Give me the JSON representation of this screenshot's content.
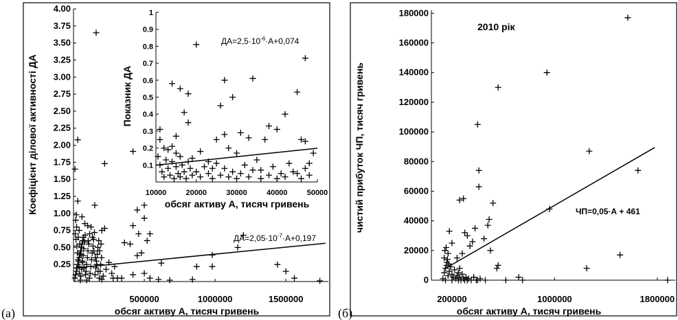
{
  "figure": {
    "panel_a_letter": "(a)",
    "panel_b_letter": "(б)"
  },
  "chart_data": [
    {
      "type": "scatter",
      "id": "panel-a-main",
      "xlabel": "обсяг активу А, тисяч гривень",
      "ylabel": "Коефіцієнт ділової активності ДА",
      "xlim": [
        0,
        1800000
      ],
      "ylim": [
        0,
        4.0
      ],
      "x_ticks": [
        500000,
        1000000,
        1500000
      ],
      "x_tick_labels": [
        "500000",
        "1000000",
        "1500000"
      ],
      "y_ticks": [
        0.25,
        0.5,
        0.75,
        1.0,
        1.25,
        1.5,
        1.75,
        2.0,
        2.25,
        2.5,
        2.75,
        3.0,
        3.25,
        3.5,
        3.75,
        4.0
      ],
      "y_tick_labels": [
        "0.25",
        "0.50",
        "0.75",
        "1.00",
        "1.25",
        "1.50",
        "1.75",
        "2.00",
        "2.25",
        "2.50",
        "2.75",
        "3.00",
        "3.25",
        "3.50",
        "3.75",
        "4.00"
      ],
      "marker": "+",
      "equation": "ДА=2,05·10-7·А+0,197",
      "equation_parts": [
        "ДА=2,05·10",
        "-7",
        "·А+0,197"
      ],
      "trendline": {
        "slope": 2.05e-07,
        "intercept": 0.197,
        "x_from": 0,
        "x_to": 1780000
      },
      "points": [
        [
          160000,
          3.65
        ],
        [
          30000,
          2.08
        ],
        [
          10000,
          1.65
        ],
        [
          220000,
          1.73
        ],
        [
          420000,
          1.91
        ],
        [
          30000,
          1.18
        ],
        [
          150000,
          1.12
        ],
        [
          500000,
          1.12
        ],
        [
          450000,
          1.05
        ],
        [
          20000,
          0.98
        ],
        [
          60000,
          0.95
        ],
        [
          500000,
          0.93
        ],
        [
          80000,
          0.85
        ],
        [
          100000,
          0.82
        ],
        [
          40000,
          0.75
        ],
        [
          200000,
          0.75
        ],
        [
          220000,
          0.78
        ],
        [
          420000,
          0.82
        ],
        [
          460000,
          0.7
        ],
        [
          540000,
          0.7
        ],
        [
          360000,
          0.57
        ],
        [
          400000,
          0.55
        ],
        [
          520000,
          0.6
        ],
        [
          480000,
          0.42
        ],
        [
          450000,
          0.38
        ],
        [
          1200000,
          0.68
        ],
        [
          1160000,
          0.5
        ],
        [
          980000,
          0.39
        ],
        [
          620000,
          0.27
        ],
        [
          870000,
          0.22
        ],
        [
          980000,
          0.22
        ],
        [
          1440000,
          0.25
        ],
        [
          1500000,
          0.15
        ],
        [
          1560000,
          0.05
        ],
        [
          1740000,
          0.01
        ],
        [
          420000,
          0.1
        ],
        [
          500000,
          0.12
        ],
        [
          540000,
          0.05
        ],
        [
          600000,
          0.03
        ],
        [
          680000,
          0.02
        ],
        [
          840000,
          0.03
        ],
        [
          340000,
          0.05
        ],
        [
          280000,
          0.05
        ],
        [
          200000,
          0.03
        ],
        [
          10000,
          0.05
        ],
        [
          15000,
          0.1
        ],
        [
          20000,
          0.15
        ],
        [
          25000,
          0.2
        ],
        [
          30000,
          0.25
        ],
        [
          35000,
          0.3
        ],
        [
          40000,
          0.35
        ],
        [
          45000,
          0.4
        ],
        [
          50000,
          0.45
        ],
        [
          55000,
          0.5
        ],
        [
          60000,
          0.55
        ],
        [
          65000,
          0.6
        ],
        [
          70000,
          0.65
        ],
        [
          12000,
          0.7
        ],
        [
          18000,
          0.62
        ],
        [
          24000,
          0.52
        ],
        [
          28000,
          0.42
        ],
        [
          32000,
          0.32
        ],
        [
          38000,
          0.22
        ],
        [
          42000,
          0.12
        ],
        [
          48000,
          0.02
        ],
        [
          52000,
          0.08
        ],
        [
          58000,
          0.18
        ],
        [
          62000,
          0.28
        ],
        [
          68000,
          0.38
        ],
        [
          72000,
          0.48
        ],
        [
          78000,
          0.58
        ],
        [
          82000,
          0.68
        ],
        [
          88000,
          0.15
        ],
        [
          92000,
          0.25
        ],
        [
          98000,
          0.35
        ],
        [
          102000,
          0.45
        ],
        [
          108000,
          0.55
        ],
        [
          112000,
          0.05
        ],
        [
          118000,
          0.12
        ],
        [
          122000,
          0.22
        ],
        [
          128000,
          0.32
        ],
        [
          132000,
          0.42
        ],
        [
          138000,
          0.52
        ],
        [
          142000,
          0.62
        ],
        [
          148000,
          0.72
        ],
        [
          152000,
          0.1
        ],
        [
          158000,
          0.2
        ],
        [
          162000,
          0.3
        ],
        [
          168000,
          0.4
        ],
        [
          172000,
          0.5
        ],
        [
          178000,
          0.6
        ],
        [
          182000,
          0.05
        ],
        [
          188000,
          0.15
        ],
        [
          192000,
          0.25
        ],
        [
          198000,
          0.35
        ],
        [
          210000,
          0.08
        ],
        [
          230000,
          0.18
        ],
        [
          250000,
          0.28
        ],
        [
          270000,
          0.12
        ],
        [
          290000,
          0.22
        ],
        [
          310000,
          0.05
        ],
        [
          16000,
          0.9
        ],
        [
          22000,
          0.8
        ],
        [
          34000,
          0.65
        ],
        [
          44000,
          0.55
        ],
        [
          54000,
          0.4
        ],
        [
          64000,
          0.3
        ],
        [
          74000,
          0.2
        ],
        [
          84000,
          0.1
        ],
        [
          94000,
          0.02
        ],
        [
          104000,
          0.6
        ],
        [
          114000,
          0.7
        ],
        [
          124000,
          0.8
        ],
        [
          134000,
          0.65
        ],
        [
          144000,
          0.45
        ],
        [
          154000,
          0.35
        ],
        [
          164000,
          0.25
        ],
        [
          174000,
          0.15
        ],
        [
          184000,
          0.45
        ],
        [
          194000,
          0.55
        ]
      ]
    },
    {
      "type": "scatter",
      "id": "panel-a-inset",
      "xlabel": "обсяг активу А, тисяч гривень",
      "ylabel": "Показник ДА",
      "xlim": [
        10000,
        50000
      ],
      "ylim": [
        0,
        1.0
      ],
      "x_ticks": [
        10000,
        20000,
        30000,
        40000,
        50000
      ],
      "x_tick_labels": [
        "10000",
        "20000",
        "30000",
        "40000",
        "50000"
      ],
      "y_ticks": [
        0.1,
        0.2,
        0.3,
        0.4,
        0.5,
        0.6,
        0.7,
        0.8,
        0.9,
        1.0
      ],
      "y_tick_labels": [
        "0.1",
        "0.2",
        "0.3",
        "0.4",
        "0.5",
        "0.6",
        "0.7",
        "0.8",
        "0.9",
        "1"
      ],
      "marker": "+",
      "equation": "ДА=2,5·10-6·А+0,074",
      "equation_parts": [
        "ДА=2,5·10",
        "-6",
        "·А+0,074"
      ],
      "trendline": {
        "slope": 2.5e-06,
        "intercept": 0.074,
        "x_from": 10000,
        "x_to": 50000
      },
      "points": [
        [
          20000,
          0.81
        ],
        [
          47000,
          0.73
        ],
        [
          14000,
          0.58
        ],
        [
          16000,
          0.55
        ],
        [
          18000,
          0.52
        ],
        [
          27000,
          0.6
        ],
        [
          26000,
          0.45
        ],
        [
          29000,
          0.5
        ],
        [
          34000,
          0.61
        ],
        [
          45000,
          0.53
        ],
        [
          17000,
          0.41
        ],
        [
          18000,
          0.35
        ],
        [
          11000,
          0.31
        ],
        [
          11000,
          0.25
        ],
        [
          12000,
          0.2
        ],
        [
          15000,
          0.27
        ],
        [
          25000,
          0.25
        ],
        [
          27000,
          0.28
        ],
        [
          31000,
          0.29
        ],
        [
          33000,
          0.26
        ],
        [
          38000,
          0.33
        ],
        [
          40000,
          0.31
        ],
        [
          37000,
          0.25
        ],
        [
          42000,
          0.4
        ],
        [
          46000,
          0.25
        ],
        [
          47000,
          0.24
        ],
        [
          13000,
          0.19
        ],
        [
          14000,
          0.21
        ],
        [
          15000,
          0.17
        ],
        [
          16000,
          0.15
        ],
        [
          19000,
          0.14
        ],
        [
          21000,
          0.18
        ],
        [
          23000,
          0.12
        ],
        [
          24000,
          0.08
        ],
        [
          28000,
          0.2
        ],
        [
          30000,
          0.17
        ],
        [
          32000,
          0.1
        ],
        [
          35000,
          0.13
        ],
        [
          36000,
          0.07
        ],
        [
          39000,
          0.09
        ],
        [
          41000,
          0.05
        ],
        [
          43000,
          0.11
        ],
        [
          44000,
          0.06
        ],
        [
          48000,
          0.04
        ],
        [
          49000,
          0.17
        ],
        [
          48000,
          0.11
        ],
        [
          10500,
          0.15
        ],
        [
          11000,
          0.1
        ],
        [
          11500,
          0.06
        ],
        [
          12000,
          0.03
        ],
        [
          12500,
          0.13
        ],
        [
          13000,
          0.08
        ],
        [
          13500,
          0.04
        ],
        [
          14000,
          0.12
        ],
        [
          14500,
          0.02
        ],
        [
          15000,
          0.09
        ],
        [
          15500,
          0.05
        ],
        [
          16000,
          0.03
        ],
        [
          16500,
          0.1
        ],
        [
          17000,
          0.06
        ],
        [
          17500,
          0.02
        ],
        [
          18000,
          0.12
        ],
        [
          18500,
          0.08
        ],
        [
          19000,
          0.04
        ],
        [
          20000,
          0.06
        ],
        [
          21000,
          0.03
        ],
        [
          22000,
          0.09
        ],
        [
          23000,
          0.05
        ],
        [
          24000,
          0.02
        ],
        [
          25000,
          0.11
        ],
        [
          26000,
          0.04
        ],
        [
          27000,
          0.08
        ],
        [
          28000,
          0.03
        ],
        [
          29000,
          0.06
        ],
        [
          30000,
          0.02
        ],
        [
          31000,
          0.05
        ],
        [
          33000,
          0.03
        ],
        [
          34000,
          0.07
        ],
        [
          36000,
          0.02
        ],
        [
          38000,
          0.04
        ],
        [
          40000,
          0.02
        ],
        [
          42000,
          0.03
        ],
        [
          45000,
          0.05
        ],
        [
          46000,
          0.02
        ],
        [
          47000,
          0.08
        ]
      ]
    },
    {
      "type": "scatter",
      "id": "panel-b",
      "title": "2010 рік",
      "xlabel": "обсяг активу А, тисяч гривень",
      "ylabel": "чистий прибуток ЧП, тисяч гривень",
      "xlim": [
        40000,
        1940000
      ],
      "ylim": [
        0,
        182000
      ],
      "x_ticks": [
        200000,
        1000000,
        1800000
      ],
      "x_tick_labels": [
        "200000",
        "1000000",
        "1800000"
      ],
      "y_ticks": [
        0,
        20000,
        40000,
        60000,
        80000,
        100000,
        120000,
        140000,
        160000,
        180000
      ],
      "y_tick_labels": [
        "0",
        "20000",
        "40000",
        "60000",
        "80000",
        "100000",
        "120000",
        "140000",
        "160000",
        "180000"
      ],
      "marker": "+",
      "equation": "ЧП=0,05·А + 461",
      "trendline": {
        "slope": 0.05,
        "intercept": 461,
        "x_from": 140000,
        "x_to": 1780000
      },
      "points": [
        [
          1570000,
          177000
        ],
        [
          940000,
          140000
        ],
        [
          560000,
          130000
        ],
        [
          400000,
          105000
        ],
        [
          410000,
          74000
        ],
        [
          410000,
          63000
        ],
        [
          1270000,
          87000
        ],
        [
          1650000,
          74000
        ],
        [
          260000,
          54000
        ],
        [
          290000,
          55000
        ],
        [
          520000,
          52000
        ],
        [
          960000,
          48000
        ],
        [
          490000,
          41000
        ],
        [
          480000,
          37000
        ],
        [
          380000,
          35000
        ],
        [
          450000,
          28000
        ],
        [
          360000,
          26000
        ],
        [
          340000,
          23000
        ],
        [
          320000,
          30000
        ],
        [
          300000,
          32000
        ],
        [
          280000,
          18000
        ],
        [
          240000,
          15000
        ],
        [
          200000,
          25000
        ],
        [
          180000,
          33000
        ],
        [
          170000,
          18000
        ],
        [
          160000,
          10000
        ],
        [
          260000,
          8000
        ],
        [
          560000,
          10000
        ],
        [
          550000,
          8000
        ],
        [
          500000,
          20000
        ],
        [
          1250000,
          8000
        ],
        [
          1510000,
          17000
        ],
        [
          1880000,
          0
        ],
        [
          720000,
          2000
        ],
        [
          750000,
          0
        ],
        [
          620000,
          0
        ],
        [
          400000,
          0
        ],
        [
          300000,
          0
        ],
        [
          250000,
          0
        ],
        [
          200000,
          0
        ],
        [
          150000,
          0
        ],
        [
          130000,
          1000
        ],
        [
          140000,
          5000
        ],
        [
          150000,
          8000
        ],
        [
          160000,
          12000
        ],
        [
          170000,
          3000
        ],
        [
          180000,
          6000
        ],
        [
          190000,
          9000
        ],
        [
          200000,
          4000
        ],
        [
          210000,
          2000
        ],
        [
          220000,
          7000
        ],
        [
          230000,
          1000
        ],
        [
          240000,
          3000
        ],
        [
          250000,
          5000
        ],
        [
          260000,
          2000
        ],
        [
          270000,
          0
        ],
        [
          280000,
          4000
        ],
        [
          290000,
          1000
        ],
        [
          310000,
          2000
        ],
        [
          320000,
          0
        ],
        [
          330000,
          1000
        ],
        [
          350000,
          0
        ],
        [
          370000,
          2000
        ],
        [
          390000,
          0
        ],
        [
          420000,
          1000
        ],
        [
          460000,
          0
        ],
        [
          140000,
          15000
        ],
        [
          145000,
          20000
        ],
        [
          155000,
          22000
        ],
        [
          165000,
          14000
        ],
        [
          175000,
          11000
        ]
      ]
    }
  ]
}
